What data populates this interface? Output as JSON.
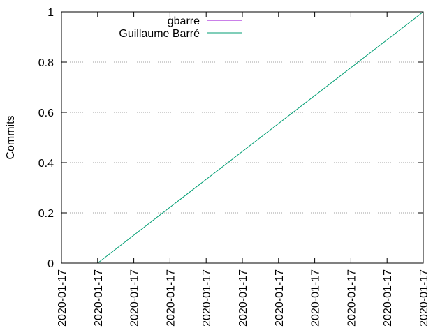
{
  "chart_data": {
    "type": "line",
    "title": "",
    "ylabel": "Commits",
    "xlabel": "",
    "ylim": [
      0,
      1
    ],
    "y_ticks": [
      0,
      0.2,
      0.4,
      0.6,
      0.8,
      1
    ],
    "x_ticks": [
      "2020-01-17",
      "2020-01-17",
      "2020-01-17",
      "2020-01-17",
      "2020-01-17",
      "2020-01-17",
      "2020-01-17",
      "2020-01-17",
      "2020-01-17",
      "2020-01-17",
      "2020-01-17"
    ],
    "grid": {
      "horizontal": true,
      "vertical": false
    },
    "legend_position": "top-left",
    "series": [
      {
        "name": "gbarre",
        "color": "#9400d3",
        "points": []
      },
      {
        "name": "Guillaume Barré",
        "color": "#009e73",
        "points": [
          [
            0.1,
            0
          ],
          [
            1.0,
            1
          ]
        ]
      }
    ]
  }
}
